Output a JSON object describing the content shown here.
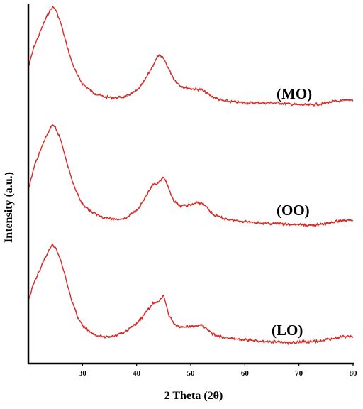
{
  "chart_data": {
    "type": "line",
    "title": "",
    "xlabel": "2 Theta (2θ)",
    "ylabel": "Intensity (a.u.)",
    "xlim": [
      20,
      80
    ],
    "xticks": [
      30,
      40,
      50,
      60,
      70,
      80
    ],
    "grid": false,
    "line_color": "#e8201c",
    "fit_color": "#7a8a80",
    "series": [
      {
        "name": "(MO)",
        "x": [
          20,
          21,
          22,
          23,
          24,
          24.5,
          25,
          26,
          27,
          28,
          29,
          30,
          32,
          34,
          36,
          38,
          40,
          41,
          42,
          43,
          44,
          45,
          46,
          47,
          48,
          50,
          52,
          54,
          56,
          58,
          60,
          62,
          64,
          66,
          68,
          70,
          72,
          74,
          76,
          78,
          80
        ],
        "y": [
          0.4,
          0.6,
          0.73,
          0.86,
          0.97,
          1.0,
          0.98,
          0.84,
          0.64,
          0.46,
          0.33,
          0.24,
          0.15,
          0.11,
          0.1,
          0.11,
          0.17,
          0.23,
          0.32,
          0.42,
          0.52,
          0.49,
          0.38,
          0.28,
          0.22,
          0.19,
          0.18,
          0.11,
          0.07,
          0.06,
          0.05,
          0.05,
          0.05,
          0.05,
          0.04,
          0.03,
          0.03,
          0.04,
          0.06,
          0.07,
          0.08
        ]
      },
      {
        "name": "(OO)",
        "x": [
          20,
          21,
          22,
          23,
          24,
          24.5,
          25,
          26,
          27,
          28,
          29,
          30,
          32,
          34,
          36,
          38,
          40,
          41,
          42,
          43,
          44,
          45,
          46,
          47,
          48,
          50,
          51,
          52,
          53,
          54,
          56,
          58,
          60,
          62,
          64,
          66,
          68,
          70,
          72,
          74,
          76,
          78,
          80
        ],
        "y": [
          0.37,
          0.59,
          0.73,
          0.86,
          0.97,
          1.0,
          0.98,
          0.86,
          0.67,
          0.48,
          0.34,
          0.24,
          0.15,
          0.11,
          0.09,
          0.1,
          0.18,
          0.25,
          0.34,
          0.42,
          0.44,
          0.5,
          0.38,
          0.26,
          0.22,
          0.23,
          0.25,
          0.25,
          0.21,
          0.14,
          0.1,
          0.08,
          0.07,
          0.06,
          0.05,
          0.05,
          0.04,
          0.04,
          0.03,
          0.04,
          0.06,
          0.08,
          0.08
        ]
      },
      {
        "name": "(LO)",
        "x": [
          20,
          21,
          22,
          23,
          24,
          24.5,
          25,
          26,
          27,
          28,
          29,
          30,
          32,
          34,
          36,
          38,
          40,
          41,
          42,
          43,
          44,
          45,
          46,
          47,
          48,
          50,
          51,
          52,
          53,
          54,
          56,
          58,
          60,
          62,
          64,
          66,
          68,
          70,
          72,
          74,
          76,
          78,
          80
        ],
        "y": [
          0.45,
          0.62,
          0.74,
          0.86,
          0.97,
          1.0,
          0.98,
          0.85,
          0.65,
          0.45,
          0.3,
          0.2,
          0.11,
          0.09,
          0.1,
          0.14,
          0.22,
          0.28,
          0.35,
          0.42,
          0.43,
          0.5,
          0.3,
          0.22,
          0.18,
          0.19,
          0.2,
          0.2,
          0.17,
          0.12,
          0.08,
          0.07,
          0.06,
          0.05,
          0.04,
          0.04,
          0.03,
          0.04,
          0.04,
          0.05,
          0.07,
          0.09,
          0.09
        ]
      }
    ]
  }
}
